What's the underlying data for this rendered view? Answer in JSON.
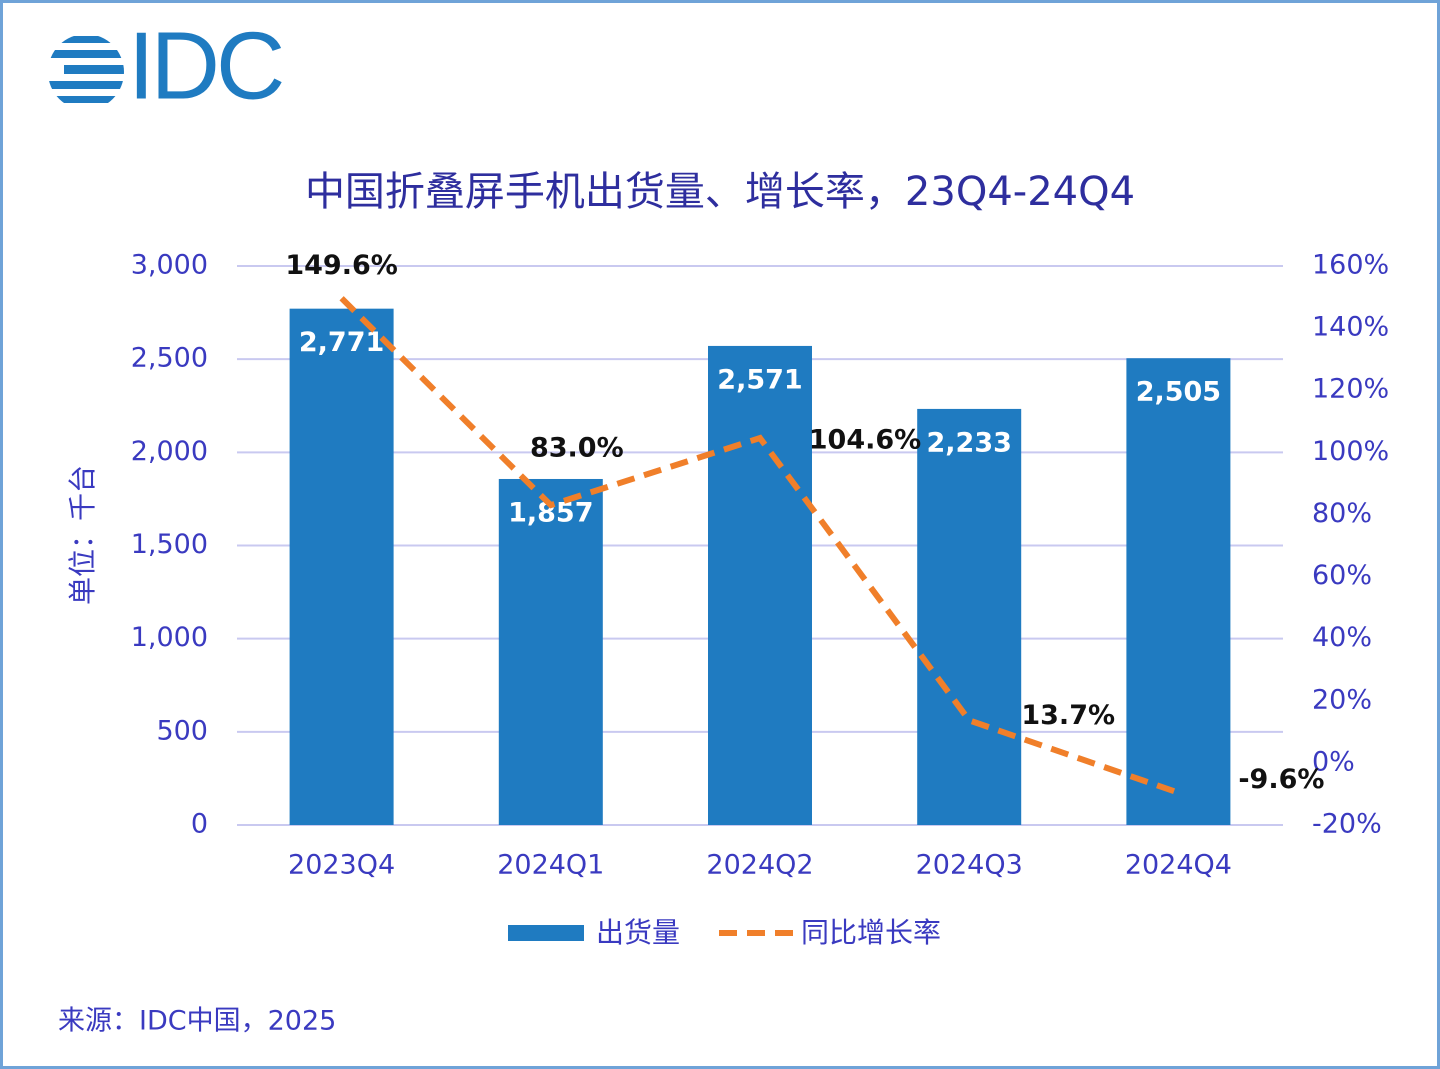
{
  "logo": "IDC",
  "chart_data": {
    "type": "bar-line",
    "title": "中国折叠屏手机出货量、增长率，23Q4-24Q4",
    "y_label": "单位：千台",
    "source": "来源：IDC中国，2025",
    "categories": [
      "2023Q4",
      "2024Q1",
      "2024Q2",
      "2024Q3",
      "2024Q4"
    ],
    "series": [
      {
        "name": "出货量",
        "type": "bar",
        "color": "#1f7bc1",
        "axis": "y",
        "values": [
          2771,
          1857,
          2571,
          2233,
          2505
        ],
        "value_labels": [
          "2,771",
          "1,857",
          "2,571",
          "2,233",
          "2,505"
        ]
      },
      {
        "name": "同比增长率",
        "type": "line",
        "color": "#f07f2a",
        "axis": "y2",
        "dashed": true,
        "values": [
          149.6,
          83.0,
          104.6,
          13.7,
          -9.6
        ],
        "value_labels": [
          "149.6%",
          "83.0%",
          "104.6%",
          "13.7%",
          "-9.6%"
        ]
      }
    ],
    "ylim": [
      0,
      3000
    ],
    "yticks": [
      0,
      500,
      {
        "value": 1000,
        "label": "1,000"
      },
      {
        "value": 1500,
        "label": "1,500"
      },
      {
        "value": 2000,
        "label": "2,000"
      },
      {
        "value": 2500,
        "label": "2,500"
      },
      {
        "value": 3000,
        "label": "3,000"
      }
    ],
    "y2lim": [
      -20,
      160
    ],
    "y2ticks": [
      {
        "value": -20,
        "label": "-20%"
      },
      {
        "value": 0,
        "label": "0%"
      },
      {
        "value": 20,
        "label": "20%"
      },
      {
        "value": 40,
        "label": "40%"
      },
      {
        "value": 60,
        "label": "60%"
      },
      {
        "value": 80,
        "label": "80%"
      },
      {
        "value": 100,
        "label": "100%"
      },
      {
        "value": 120,
        "label": "120%"
      },
      {
        "value": 140,
        "label": "140%"
      },
      {
        "value": 160,
        "label": "160%"
      }
    ],
    "grid": true,
    "legend": "bottom"
  }
}
